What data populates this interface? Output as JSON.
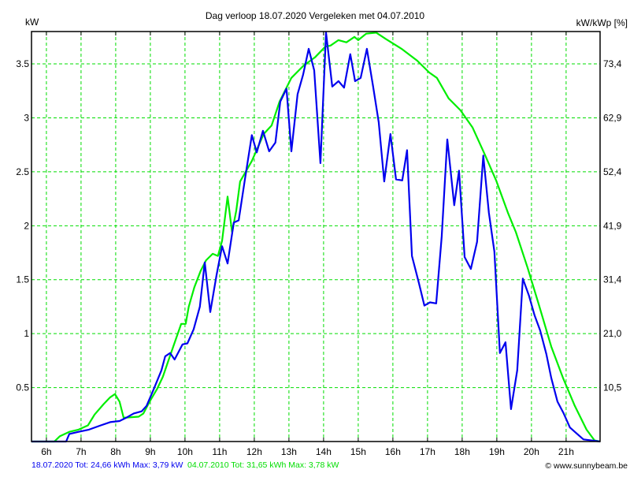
{
  "chart_data": {
    "type": "line",
    "title": "Dag  verloop 18.07.2020   Vergeleken met 04.07.2010",
    "ylabel": "kW",
    "ylabel_right": "kW/kWp [%]",
    "xlim": [
      5.57,
      21.98
    ],
    "ylim": [
      0,
      3.8
    ],
    "grid": true,
    "x_ticks": [
      6,
      7,
      8,
      9,
      10,
      11,
      12,
      13,
      14,
      15,
      16,
      17,
      18,
      19,
      20,
      21
    ],
    "x_tick_labels": [
      "6h",
      "7h",
      "8h",
      "9h",
      "10h",
      "11h",
      "12h",
      "13h",
      "14h",
      "15h",
      "16h",
      "17h",
      "18h",
      "19h",
      "20h",
      "21h"
    ],
    "y_ticks": [
      0.5,
      1,
      1.5,
      2,
      2.5,
      3,
      3.5
    ],
    "y_tick_labels": [
      "0.5",
      "1",
      "1.5",
      "2",
      "2.5",
      "3",
      "3.5"
    ],
    "y_right_tick_labels": [
      "10,5",
      "21,0",
      "31,4",
      "41,9",
      "52,4",
      "62,9",
      "73,4"
    ],
    "series": [
      {
        "name": "18.07.2020",
        "color": "#0000ee",
        "legend": "18.07.2020 Tot: 24,66 kWh Max: 3,79 kW",
        "points": [
          [
            5.57,
            0
          ],
          [
            6.57,
            0
          ],
          [
            6.66,
            0.07
          ],
          [
            6.93,
            0.09
          ],
          [
            7.23,
            0.11
          ],
          [
            7.57,
            0.15
          ],
          [
            7.84,
            0.18
          ],
          [
            8.11,
            0.19
          ],
          [
            8.3,
            0.22
          ],
          [
            8.52,
            0.26
          ],
          [
            8.75,
            0.28
          ],
          [
            8.89,
            0.33
          ],
          [
            9.09,
            0.48
          ],
          [
            9.32,
            0.66
          ],
          [
            9.43,
            0.79
          ],
          [
            9.57,
            0.82
          ],
          [
            9.7,
            0.76
          ],
          [
            9.93,
            0.9
          ],
          [
            10.07,
            0.91
          ],
          [
            10.25,
            1.04
          ],
          [
            10.43,
            1.25
          ],
          [
            10.57,
            1.66
          ],
          [
            10.73,
            1.2
          ],
          [
            10.91,
            1.54
          ],
          [
            11.07,
            1.81
          ],
          [
            11.23,
            1.65
          ],
          [
            11.41,
            2.03
          ],
          [
            11.55,
            2.05
          ],
          [
            11.73,
            2.43
          ],
          [
            11.93,
            2.84
          ],
          [
            12.07,
            2.68
          ],
          [
            12.25,
            2.88
          ],
          [
            12.43,
            2.69
          ],
          [
            12.61,
            2.77
          ],
          [
            12.75,
            3.15
          ],
          [
            12.93,
            3.27
          ],
          [
            13.07,
            2.69
          ],
          [
            13.25,
            3.22
          ],
          [
            13.41,
            3.4
          ],
          [
            13.57,
            3.64
          ],
          [
            13.73,
            3.44
          ],
          [
            13.91,
            2.58
          ],
          [
            14.07,
            3.79
          ],
          [
            14.25,
            3.29
          ],
          [
            14.43,
            3.34
          ],
          [
            14.59,
            3.28
          ],
          [
            14.77,
            3.59
          ],
          [
            14.91,
            3.34
          ],
          [
            15.07,
            3.37
          ],
          [
            15.25,
            3.64
          ],
          [
            15.43,
            3.29
          ],
          [
            15.59,
            2.96
          ],
          [
            15.75,
            2.41
          ],
          [
            15.93,
            2.85
          ],
          [
            16.09,
            2.43
          ],
          [
            16.27,
            2.42
          ],
          [
            16.41,
            2.7
          ],
          [
            16.55,
            1.72
          ],
          [
            16.75,
            1.47
          ],
          [
            16.91,
            1.26
          ],
          [
            17.07,
            1.29
          ],
          [
            17.25,
            1.28
          ],
          [
            17.41,
            1.9
          ],
          [
            17.57,
            2.8
          ],
          [
            17.77,
            2.19
          ],
          [
            17.91,
            2.51
          ],
          [
            18.07,
            1.71
          ],
          [
            18.25,
            1.6
          ],
          [
            18.43,
            1.85
          ],
          [
            18.61,
            2.65
          ],
          [
            18.77,
            2.12
          ],
          [
            18.93,
            1.76
          ],
          [
            19.09,
            0.82
          ],
          [
            19.25,
            0.92
          ],
          [
            19.41,
            0.3
          ],
          [
            19.59,
            0.66
          ],
          [
            19.75,
            1.51
          ],
          [
            19.93,
            1.35
          ],
          [
            20.09,
            1.17
          ],
          [
            20.25,
            1.03
          ],
          [
            20.43,
            0.81
          ],
          [
            20.57,
            0.59
          ],
          [
            20.75,
            0.37
          ],
          [
            20.93,
            0.26
          ],
          [
            21.11,
            0.13
          ],
          [
            21.32,
            0.07
          ],
          [
            21.5,
            0.02
          ],
          [
            21.98,
            0
          ]
        ]
      },
      {
        "name": "04.07.2010",
        "color": "#00ee00",
        "legend": "04.07.2010 Tot: 31,65 kWh Max: 3,78 kW",
        "points": [
          [
            5.57,
            0
          ],
          [
            6.23,
            0
          ],
          [
            6.39,
            0.05
          ],
          [
            6.66,
            0.09
          ],
          [
            6.93,
            0.11
          ],
          [
            7.2,
            0.15
          ],
          [
            7.39,
            0.25
          ],
          [
            7.66,
            0.35
          ],
          [
            7.84,
            0.41
          ],
          [
            7.98,
            0.44
          ],
          [
            8.11,
            0.37
          ],
          [
            8.23,
            0.22
          ],
          [
            8.66,
            0.23
          ],
          [
            8.8,
            0.26
          ],
          [
            8.98,
            0.37
          ],
          [
            9.2,
            0.49
          ],
          [
            9.36,
            0.6
          ],
          [
            9.5,
            0.73
          ],
          [
            9.66,
            0.88
          ],
          [
            9.89,
            1.09
          ],
          [
            10.02,
            1.09
          ],
          [
            10.11,
            1.25
          ],
          [
            10.27,
            1.43
          ],
          [
            10.45,
            1.58
          ],
          [
            10.61,
            1.68
          ],
          [
            10.8,
            1.74
          ],
          [
            10.95,
            1.72
          ],
          [
            11.07,
            1.86
          ],
          [
            11.23,
            2.27
          ],
          [
            11.36,
            1.94
          ],
          [
            11.48,
            2.14
          ],
          [
            11.59,
            2.41
          ],
          [
            11.93,
            2.6
          ],
          [
            12.27,
            2.85
          ],
          [
            12.5,
            2.93
          ],
          [
            12.73,
            3.15
          ],
          [
            13.07,
            3.37
          ],
          [
            13.41,
            3.48
          ],
          [
            13.75,
            3.56
          ],
          [
            14.05,
            3.66
          ],
          [
            14.2,
            3.67
          ],
          [
            14.43,
            3.72
          ],
          [
            14.66,
            3.7
          ],
          [
            14.89,
            3.75
          ],
          [
            15.0,
            3.72
          ],
          [
            15.23,
            3.78
          ],
          [
            15.52,
            3.79
          ],
          [
            15.8,
            3.73
          ],
          [
            16.25,
            3.64
          ],
          [
            16.7,
            3.53
          ],
          [
            17.05,
            3.42
          ],
          [
            17.27,
            3.37
          ],
          [
            17.61,
            3.18
          ],
          [
            17.95,
            3.07
          ],
          [
            18.3,
            2.91
          ],
          [
            18.64,
            2.67
          ],
          [
            18.98,
            2.42
          ],
          [
            19.32,
            2.12
          ],
          [
            19.55,
            1.94
          ],
          [
            19.89,
            1.61
          ],
          [
            20.23,
            1.25
          ],
          [
            20.57,
            0.88
          ],
          [
            20.91,
            0.59
          ],
          [
            21.25,
            0.33
          ],
          [
            21.59,
            0.11
          ],
          [
            21.82,
            0.01
          ],
          [
            21.98,
            0
          ]
        ]
      }
    ],
    "grid_color": "#00dd00",
    "watermark": "© www.sunnybeam.be"
  }
}
